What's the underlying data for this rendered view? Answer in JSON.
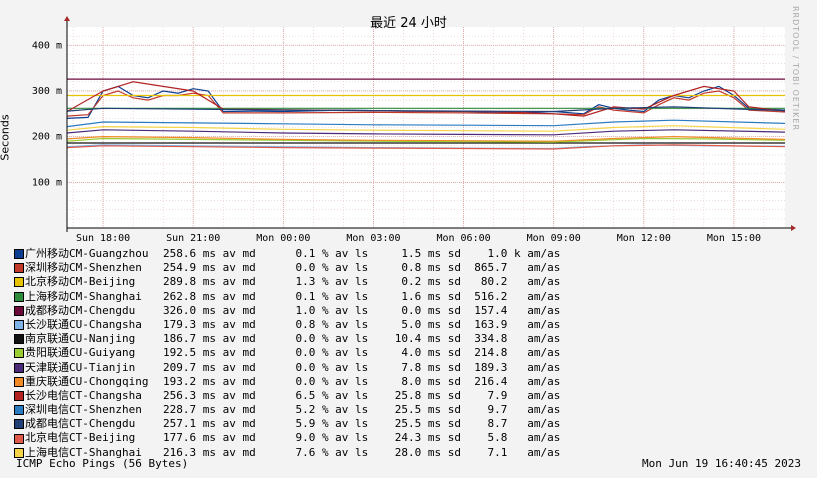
{
  "chart_data": {
    "type": "line",
    "title": "最近 24 小时",
    "ylabel": "Seconds",
    "watermark": "RRDTOOL / TOBI OETIKER",
    "ylim": [
      0,
      440
    ],
    "yticks": [
      {
        "value": 100,
        "label": "100 m"
      },
      {
        "value": 200,
        "label": "200 m"
      },
      {
        "value": 300,
        "label": "300 m"
      },
      {
        "value": 400,
        "label": "400 m"
      }
    ],
    "xlim_hours": [
      16.8,
      40.7
    ],
    "xticks": [
      {
        "hour": 18,
        "label": "Sun 18:00"
      },
      {
        "hour": 21,
        "label": "Sun 21:00"
      },
      {
        "hour": 24,
        "label": "Mon 00:00"
      },
      {
        "hour": 27,
        "label": "Mon 03:00"
      },
      {
        "hour": 30,
        "label": "Mon 06:00"
      },
      {
        "hour": 33,
        "label": "Mon 09:00"
      },
      {
        "hour": 36,
        "label": "Mon 12:00"
      },
      {
        "hour": 39,
        "label": "Mon 15:00"
      }
    ],
    "grid": true,
    "series": [
      {
        "name": "广州移动CM-Guangzhou",
        "color": "#0b3d91",
        "stats": "258.6 ms av md      0.1 % av ls     1.5 ms sd    1.0 k am/as",
        "points": [
          [
            16.8,
            240
          ],
          [
            17.5,
            242
          ],
          [
            18,
            300
          ],
          [
            18.5,
            310
          ],
          [
            19,
            290
          ],
          [
            19.5,
            285
          ],
          [
            20,
            300
          ],
          [
            20.5,
            295
          ],
          [
            21,
            305
          ],
          [
            21.5,
            300
          ],
          [
            22,
            255
          ],
          [
            23,
            256
          ],
          [
            24,
            255
          ],
          [
            26,
            258
          ],
          [
            28,
            256
          ],
          [
            30,
            255
          ],
          [
            32,
            252
          ],
          [
            33,
            255
          ],
          [
            34,
            250
          ],
          [
            34.5,
            270
          ],
          [
            35,
            262
          ],
          [
            35.5,
            258
          ],
          [
            36,
            255
          ],
          [
            36.5,
            280
          ],
          [
            37,
            290
          ],
          [
            37.5,
            285
          ],
          [
            38,
            300
          ],
          [
            38.5,
            310
          ],
          [
            39,
            290
          ],
          [
            39.5,
            262
          ],
          [
            40.7,
            258
          ]
        ]
      },
      {
        "name": "深圳移动CM-Shenzhen",
        "color": "#c0392b",
        "stats": "254.9 ms av md      0.0 % av ls     0.8 ms sd  865.7   am/as",
        "points": [
          [
            16.8,
            245
          ],
          [
            17.5,
            248
          ],
          [
            18,
            290
          ],
          [
            18.5,
            300
          ],
          [
            19,
            285
          ],
          [
            19.5,
            280
          ],
          [
            20,
            290
          ],
          [
            20.5,
            290
          ],
          [
            21,
            295
          ],
          [
            21.5,
            290
          ],
          [
            22,
            252
          ],
          [
            24,
            252
          ],
          [
            27,
            253
          ],
          [
            30,
            252
          ],
          [
            33,
            250
          ],
          [
            34,
            248
          ],
          [
            34.5,
            265
          ],
          [
            35,
            258
          ],
          [
            36,
            252
          ],
          [
            36.5,
            270
          ],
          [
            37,
            285
          ],
          [
            37.5,
            280
          ],
          [
            38,
            295
          ],
          [
            38.5,
            300
          ],
          [
            39,
            285
          ],
          [
            39.5,
            258
          ],
          [
            40.7,
            254
          ]
        ]
      },
      {
        "name": "北京移动CM-Beijing",
        "color": "#e6c200",
        "stats": "289.8 ms av md      1.3 % av ls     0.2 ms sd   80.2   am/as",
        "points": [
          [
            16.8,
            290
          ],
          [
            40.7,
            290
          ]
        ]
      },
      {
        "name": "上海移动CM-Shanghai",
        "color": "#2e8b3a",
        "stats": "262.8 ms av md      0.1 % av ls     1.6 ms sd  516.2   am/as",
        "points": [
          [
            16.8,
            262
          ],
          [
            40.7,
            262
          ]
        ]
      },
      {
        "name": "成都移动CM-Chengdu",
        "color": "#6b0a3a",
        "stats": "326.0 ms av md      1.0 % av ls     0.0 ms sd  157.4   am/as",
        "points": [
          [
            16.8,
            326
          ],
          [
            40.7,
            326
          ]
        ]
      },
      {
        "name": "长沙联通CU-Changsha",
        "color": "#7fb2e5",
        "stats": "179.3 ms av md      0.8 % av ls     5.0 ms sd  163.9   am/as",
        "points": [
          [
            16.8,
            178
          ],
          [
            18,
            182
          ],
          [
            21,
            180
          ],
          [
            24,
            178
          ],
          [
            27,
            176
          ],
          [
            30,
            175
          ],
          [
            33,
            174
          ],
          [
            34,
            178
          ],
          [
            36,
            182
          ],
          [
            38,
            180
          ],
          [
            40.7,
            179
          ]
        ]
      },
      {
        "name": "南京联通CU-Nanjing",
        "color": "#111111",
        "stats": "186.7 ms av md      0.0 % av ls    10.4 ms sd  334.8   am/as",
        "points": [
          [
            16.8,
            186
          ],
          [
            40.7,
            186
          ]
        ]
      },
      {
        "name": "贵阳联通CU-Guiyang",
        "color": "#9acd32",
        "stats": "192.5 ms av md      0.0 % av ls     4.0 ms sd  214.8   am/as",
        "points": [
          [
            16.8,
            190
          ],
          [
            18,
            196
          ],
          [
            21,
            194
          ],
          [
            24,
            192
          ],
          [
            27,
            190
          ],
          [
            30,
            189
          ],
          [
            33,
            188
          ],
          [
            36,
            196
          ],
          [
            38,
            195
          ],
          [
            40.7,
            192
          ]
        ]
      },
      {
        "name": "天津联通CU-Tianjin",
        "color": "#4b2a7a",
        "stats": "209.7 ms av md      0.0 % av ls     7.8 ms sd  189.3   am/as",
        "points": [
          [
            16.8,
            208
          ],
          [
            18,
            215
          ],
          [
            21,
            212
          ],
          [
            24,
            208
          ],
          [
            27,
            206
          ],
          [
            30,
            205
          ],
          [
            33,
            204
          ],
          [
            35,
            212
          ],
          [
            37,
            215
          ],
          [
            40.7,
            210
          ]
        ]
      },
      {
        "name": "重庆联通CU-Chongqing",
        "color": "#f08a24",
        "stats": "193.2 ms av md      0.0 % av ls     8.0 ms sd  216.4   am/as",
        "points": [
          [
            16.8,
            195
          ],
          [
            18,
            200
          ],
          [
            21,
            198
          ],
          [
            24,
            194
          ],
          [
            27,
            192
          ],
          [
            30,
            191
          ],
          [
            33,
            190
          ],
          [
            35,
            196
          ],
          [
            37,
            200
          ],
          [
            40.7,
            194
          ]
        ]
      },
      {
        "name": "长沙电信CT-Changsha",
        "color": "#b22222",
        "stats": "256.3 ms av md      6.5 % av ls    25.8 ms sd    7.9   am/as",
        "points": [
          [
            16.8,
            255
          ],
          [
            18,
            300
          ],
          [
            19,
            320
          ],
          [
            20,
            310
          ],
          [
            21,
            300
          ],
          [
            22,
            260
          ],
          [
            25,
            258
          ],
          [
            28,
            256
          ],
          [
            31,
            255
          ],
          [
            33,
            250
          ],
          [
            34,
            245
          ],
          [
            35,
            265
          ],
          [
            36,
            260
          ],
          [
            37,
            290
          ],
          [
            38,
            310
          ],
          [
            39,
            300
          ],
          [
            39.5,
            265
          ],
          [
            40.7,
            256
          ]
        ]
      },
      {
        "name": "深圳电信CT-Shenzhen",
        "color": "#2b7bc0",
        "stats": "228.7 ms av md      5.2 % av ls    25.5 ms sd    9.7   am/as",
        "points": [
          [
            16.8,
            222
          ],
          [
            18,
            232
          ],
          [
            21,
            230
          ],
          [
            24,
            228
          ],
          [
            27,
            226
          ],
          [
            30,
            225
          ],
          [
            33,
            224
          ],
          [
            35,
            232
          ],
          [
            37,
            236
          ],
          [
            40.7,
            229
          ]
        ]
      },
      {
        "name": "成都电信CT-Chengdu",
        "color": "#1f3f77",
        "stats": "257.1 ms av md      5.9 % av ls    25.5 ms sd    8.7   am/as",
        "points": [
          [
            16.8,
            256
          ],
          [
            18,
            262
          ],
          [
            21,
            260
          ],
          [
            24,
            258
          ],
          [
            27,
            257
          ],
          [
            30,
            256
          ],
          [
            33,
            255
          ],
          [
            35,
            262
          ],
          [
            37,
            265
          ],
          [
            40.7,
            257
          ]
        ]
      },
      {
        "name": "北京电信CT-Beijing",
        "color": "#e05a4a",
        "stats": "177.6 ms av md      9.0 % av ls    24.3 ms sd    5.8   am/as",
        "points": [
          [
            16.8,
            176
          ],
          [
            18,
            180
          ],
          [
            21,
            178
          ],
          [
            24,
            176
          ],
          [
            27,
            175
          ],
          [
            30,
            174
          ],
          [
            33,
            173
          ],
          [
            35,
            180
          ],
          [
            37,
            182
          ],
          [
            40.7,
            178
          ]
        ]
      },
      {
        "name": "上海电信CT-Shanghai",
        "color": "#f5d547",
        "stats": "216.3 ms av md      7.6 % av ls    28.0 ms sd    7.1   am/as",
        "points": [
          [
            16.8,
            214
          ],
          [
            18,
            222
          ],
          [
            21,
            220
          ],
          [
            24,
            216
          ],
          [
            27,
            214
          ],
          [
            30,
            213
          ],
          [
            33,
            212
          ],
          [
            35,
            220
          ],
          [
            37,
            224
          ],
          [
            40.7,
            216
          ]
        ]
      }
    ]
  },
  "footer": {
    "left": "ICMP Echo Pings (56 Bytes)",
    "right": "Mon Jun 19 16:40:45 2023"
  }
}
